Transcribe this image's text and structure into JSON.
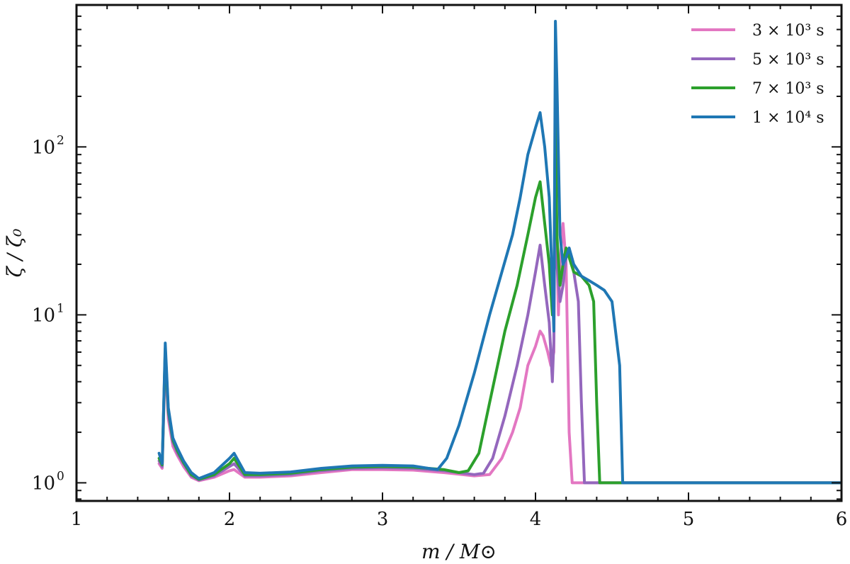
{
  "chart_data": {
    "type": "line",
    "xlabel": "m / M⊙",
    "ylabel": "ζ / ζ₀",
    "xlim": [
      1,
      6
    ],
    "ylim": [
      0.78,
      700
    ],
    "yscale": "log",
    "x_ticks": [
      1,
      2,
      3,
      4,
      5,
      6
    ],
    "x_tick_labels": [
      "1",
      "2",
      "3",
      "4",
      "5",
      "6"
    ],
    "y_ticks": [
      1,
      10,
      100
    ],
    "y_tick_labels": [
      "10",
      "10",
      "10"
    ],
    "y_tick_exponents": [
      "0",
      "1",
      "2"
    ],
    "grid": false,
    "legend_position": "top-right",
    "series": [
      {
        "name": "3 × 10³ s",
        "color": "#e377c2",
        "x": [
          1.54,
          1.56,
          1.58,
          1.6,
          1.63,
          1.66,
          1.7,
          1.75,
          1.8,
          1.9,
          2.0,
          2.03,
          2.1,
          2.2,
          2.4,
          2.6,
          2.8,
          3.0,
          3.2,
          3.4,
          3.6,
          3.7,
          3.78,
          3.85,
          3.9,
          3.95,
          4.0,
          4.03,
          4.05,
          4.08,
          4.1,
          4.12,
          4.13,
          4.14,
          4.15,
          4.16,
          4.18,
          4.2,
          4.22,
          4.24,
          4.3,
          4.5,
          6.0
        ],
        "values": [
          1.3,
          1.22,
          5.5,
          2.4,
          1.65,
          1.45,
          1.25,
          1.08,
          1.03,
          1.08,
          1.18,
          1.2,
          1.08,
          1.08,
          1.1,
          1.15,
          1.2,
          1.2,
          1.19,
          1.15,
          1.1,
          1.12,
          1.4,
          2.0,
          2.8,
          5.0,
          6.5,
          8.0,
          7.5,
          6.0,
          5.0,
          6.0,
          120,
          25,
          10,
          20,
          35,
          20,
          2.0,
          1.0,
          1.0,
          1.0,
          1.0
        ]
      },
      {
        "name": "5 × 10³ s",
        "color": "#9467bd",
        "x": [
          1.54,
          1.56,
          1.58,
          1.6,
          1.63,
          1.66,
          1.7,
          1.75,
          1.8,
          1.9,
          2.0,
          2.03,
          2.1,
          2.2,
          2.4,
          2.6,
          2.8,
          3.0,
          3.2,
          3.4,
          3.6,
          3.66,
          3.72,
          3.8,
          3.88,
          3.95,
          4.0,
          4.03,
          4.06,
          4.09,
          4.11,
          4.12,
          4.13,
          4.14,
          4.16,
          4.18,
          4.2,
          4.22,
          4.25,
          4.28,
          4.3,
          4.32,
          4.4,
          6.0
        ],
        "values": [
          1.35,
          1.25,
          6.0,
          2.6,
          1.75,
          1.5,
          1.3,
          1.1,
          1.04,
          1.1,
          1.25,
          1.3,
          1.1,
          1.1,
          1.12,
          1.18,
          1.22,
          1.23,
          1.22,
          1.18,
          1.12,
          1.14,
          1.4,
          2.5,
          5.0,
          10.0,
          18.0,
          26.0,
          15.0,
          9.0,
          4.0,
          7.0,
          160,
          20,
          12,
          15,
          22,
          25,
          18,
          12,
          3.0,
          1.0,
          1.0,
          1.0
        ]
      },
      {
        "name": "7 × 10³ s",
        "color": "#2ca02c",
        "x": [
          1.54,
          1.56,
          1.58,
          1.6,
          1.63,
          1.66,
          1.7,
          1.75,
          1.8,
          1.9,
          2.0,
          2.03,
          2.1,
          2.2,
          2.4,
          2.6,
          2.8,
          3.0,
          3.2,
          3.4,
          3.5,
          3.56,
          3.63,
          3.7,
          3.8,
          3.88,
          3.95,
          4.0,
          4.03,
          4.06,
          4.09,
          4.11,
          4.12,
          4.13,
          4.14,
          4.16,
          4.18,
          4.2,
          4.25,
          4.3,
          4.35,
          4.38,
          4.4,
          4.42,
          4.5,
          6.0
        ],
        "values": [
          1.4,
          1.28,
          6.3,
          2.7,
          1.8,
          1.55,
          1.32,
          1.12,
          1.05,
          1.12,
          1.3,
          1.4,
          1.12,
          1.12,
          1.14,
          1.2,
          1.24,
          1.25,
          1.24,
          1.2,
          1.15,
          1.18,
          1.5,
          3.0,
          8.0,
          15.0,
          30.0,
          50.0,
          62.0,
          35.0,
          20.0,
          10.0,
          12.0,
          200,
          30,
          15,
          20,
          25,
          18,
          17,
          15,
          12,
          3.0,
          1.0,
          1.0,
          1.0
        ]
      },
      {
        "name": "1 × 10⁴ s",
        "color": "#1f77b4",
        "x": [
          1.54,
          1.56,
          1.58,
          1.6,
          1.63,
          1.66,
          1.7,
          1.75,
          1.8,
          1.9,
          2.0,
          2.03,
          2.1,
          2.2,
          2.4,
          2.6,
          2.8,
          3.0,
          3.2,
          3.3,
          3.36,
          3.42,
          3.5,
          3.6,
          3.7,
          3.78,
          3.85,
          3.9,
          3.95,
          4.0,
          4.03,
          4.06,
          4.09,
          4.11,
          4.12,
          4.13,
          4.14,
          4.16,
          4.18,
          4.2,
          4.22,
          4.25,
          4.3,
          4.35,
          4.4,
          4.45,
          4.5,
          4.55,
          4.57,
          4.6,
          6.0
        ],
        "values": [
          1.5,
          1.3,
          6.8,
          2.8,
          1.85,
          1.6,
          1.35,
          1.15,
          1.06,
          1.15,
          1.4,
          1.5,
          1.15,
          1.14,
          1.16,
          1.22,
          1.26,
          1.27,
          1.26,
          1.22,
          1.2,
          1.4,
          2.2,
          4.5,
          10.0,
          18.0,
          30.0,
          50.0,
          90.0,
          130.0,
          160.0,
          100.0,
          50.0,
          15.0,
          8.0,
          560.0,
          250.0,
          30.0,
          20.0,
          22.0,
          25.0,
          20.0,
          17.0,
          16.0,
          15.0,
          14.0,
          12.0,
          5.0,
          1.0,
          1.0,
          1.0
        ]
      }
    ]
  }
}
